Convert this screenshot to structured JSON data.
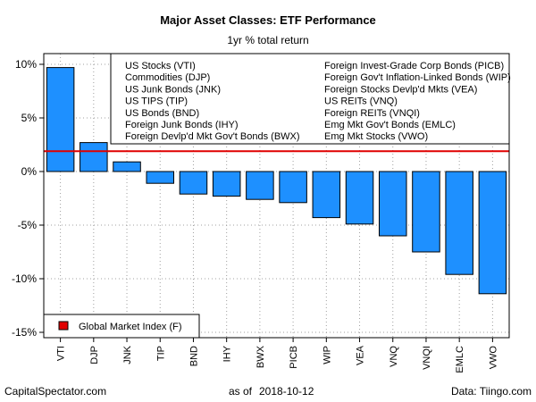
{
  "chart_data": {
    "type": "bar",
    "title": "Major Asset Classes: ETF Performance",
    "subtitle": "1yr % total return",
    "categories": [
      "VTI",
      "DJP",
      "JNK",
      "TIP",
      "BND",
      "IHY",
      "BWX",
      "PICB",
      "WIP",
      "VEA",
      "VNQ",
      "VNQI",
      "EMLC",
      "VWO"
    ],
    "values": [
      9.7,
      2.7,
      0.9,
      -1.1,
      -2.1,
      -2.3,
      -2.6,
      -2.9,
      -4.3,
      -4.9,
      -6.0,
      -7.5,
      -9.6,
      -11.4
    ],
    "ylim": [
      -15.5,
      11
    ],
    "yticks": [
      10,
      5,
      0,
      -5,
      -10,
      -15
    ],
    "ytick_labels": [
      "10%",
      "5%",
      "0%",
      "-5%",
      "-10%",
      "-15%"
    ],
    "bar_color": "#1e90ff",
    "reference_line": {
      "value": 1.9,
      "color": "#e00000"
    },
    "grid": true,
    "legend_entries": [
      [
        "US Stocks (VTI)",
        "Foreign Invest-Grade Corp Bonds (PICB)"
      ],
      [
        "Commodities (DJP)",
        "Foreign Gov't Inflation-Linked Bonds (WIP)"
      ],
      [
        "US Junk Bonds (JNK)",
        "Foreign Stocks Devlp'd Mkts (VEA)"
      ],
      [
        "US TIPS (TIP)",
        "US REITs (VNQ)"
      ],
      [
        "US Bonds (BND)",
        "Foreign REITs (VNQI)"
      ],
      [
        "Foreign Junk Bonds (IHY)",
        "Emg Mkt Gov't Bonds (EMLC)"
      ],
      [
        "Foreign Devlp'd Mkt Gov't Bonds (BWX)",
        "Emg Mkt Stocks (VWO)"
      ]
    ],
    "legend_placement": "top-right",
    "index_legend": {
      "label": "Global Market Index (F)",
      "color": "#e00000",
      "placement": "bottom-left"
    }
  },
  "footer": {
    "source": "CapitalSpectator.com",
    "date_prefix": "as of",
    "date": "2018-10-12",
    "data": "Data: Tiingo.com"
  }
}
